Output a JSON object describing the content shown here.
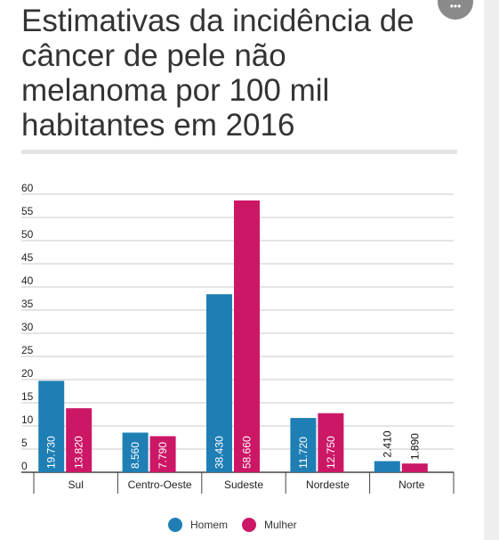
{
  "title": "Estimativas da incidência de câncer de pele não melanoma por 100 mil habitantes em 2016",
  "title_lines": [
    "Estimativas da incidência de",
    "câncer de pele não",
    "melanoma por 100 mil",
    "habitantes em 2016"
  ],
  "chart_data": {
    "type": "bar",
    "title": "Estimativas da incidência de câncer de pele não melanoma por 100 mil habitantes em 2016",
    "categories": [
      "Sul",
      "Centro-Oeste",
      "Sudeste",
      "Nordeste",
      "Norte"
    ],
    "series": [
      {
        "name": "Homem",
        "color": "#1f7fb5",
        "values": [
          19.73,
          8.56,
          38.43,
          11.72,
          2.41
        ],
        "labels": [
          "19.730",
          "8.560",
          "38.430",
          "11.720",
          "2.410"
        ]
      },
      {
        "name": "Mulher",
        "color": "#cc1767",
        "values": [
          13.82,
          7.79,
          58.66,
          12.75,
          1.89
        ],
        "labels": [
          "13.820",
          "7.790",
          "58.660",
          "12.750",
          "1.890"
        ]
      }
    ],
    "yticks": [
      0,
      5,
      10,
      15,
      20,
      25,
      30,
      35,
      40,
      45,
      50,
      55,
      60
    ],
    "ylim": [
      0,
      60
    ],
    "grid": true,
    "legend": "bottom-center"
  }
}
